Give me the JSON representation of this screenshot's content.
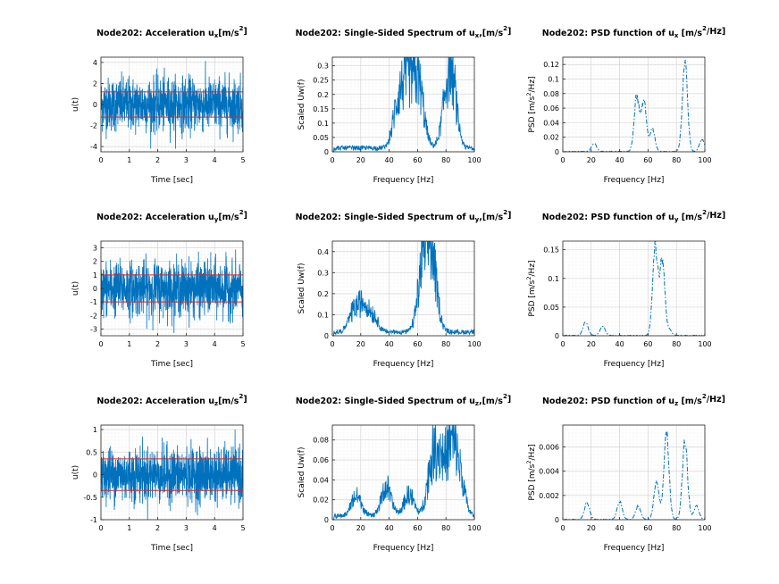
{
  "figure": {
    "panels": [
      {
        "id": "ax-ux",
        "title_pre": "Node202: Acceleration u",
        "title_sub": "x",
        "title_mid": "[m/s",
        "title_sup": "2",
        "title_post": "]",
        "xlabel": "Time [sec]",
        "ylabel": "u(t)",
        "xticks": [
          "0",
          "1",
          "2",
          "3",
          "4",
          "5"
        ],
        "yticks": [
          "-4",
          "-2",
          "0",
          "2",
          "4"
        ]
      },
      {
        "id": "ax-spec-x",
        "title_pre": "Node202: Single-Sided Spectrum of u",
        "title_sub": "x",
        "title_mid": ",[m/s",
        "title_sup": "2",
        "title_post": "]",
        "xlabel": "Frequency [Hz]",
        "ylabel": "Scaled Uw(f)",
        "xticks": [
          "0",
          "20",
          "40",
          "60",
          "80",
          "100"
        ],
        "yticks": [
          "0",
          "0.05",
          "0.1",
          "0.15",
          "0.2",
          "0.25",
          "0.3"
        ]
      },
      {
        "id": "ax-psd-x",
        "title_pre": "Node202: PSD function of u",
        "title_sub": "x",
        "title_mid": " [m/s",
        "title_sup": "2",
        "title_post": "/Hz]",
        "xlabel": "Frequency [Hz]",
        "ylabel_pre": "PSD [m/s",
        "ylabel_sup": "2",
        "ylabel_post": "/Hz]",
        "xticks": [
          "0",
          "20",
          "40",
          "60",
          "80",
          "100"
        ],
        "yticks": [
          "0",
          "0.02",
          "0.04",
          "0.06",
          "0.08",
          "0.1",
          "0.12"
        ]
      },
      {
        "id": "ax-uy",
        "title_pre": "Node202: Acceleration u",
        "title_sub": "y",
        "title_mid": "[m/s",
        "title_sup": "2",
        "title_post": "]",
        "xlabel": "Time [sec]",
        "ylabel": "u(t)",
        "xticks": [
          "0",
          "1",
          "2",
          "3",
          "4",
          "5"
        ],
        "yticks": [
          "-3",
          "-2",
          "-1",
          "0",
          "1",
          "2",
          "3"
        ]
      },
      {
        "id": "ax-spec-y",
        "title_pre": "Node202: Single-Sided Spectrum of u",
        "title_sub": "y",
        "title_mid": ",[m/s",
        "title_sup": "2",
        "title_post": "]",
        "xlabel": "Frequency [Hz]",
        "ylabel": "Scaled Uw(f)",
        "xticks": [
          "0",
          "20",
          "40",
          "60",
          "80",
          "100"
        ],
        "yticks": [
          "0",
          "0.1",
          "0.2",
          "0.3",
          "0.4"
        ]
      },
      {
        "id": "ax-psd-y",
        "title_pre": "Node202: PSD function of u",
        "title_sub": "y",
        "title_mid": " [m/s",
        "title_sup": "2",
        "title_post": "/Hz]",
        "xlabel": "Frequency [Hz]",
        "ylabel_pre": "PSD [m/s",
        "ylabel_sup": "2",
        "ylabel_post": "/Hz]",
        "xticks": [
          "0",
          "20",
          "40",
          "60",
          "80",
          "100"
        ],
        "yticks": [
          "0",
          "0.05",
          "0.1",
          "0.15"
        ]
      },
      {
        "id": "ax-uz",
        "title_pre": "Node202: Acceleration u",
        "title_sub": "z",
        "title_mid": "[m/s",
        "title_sup": "2",
        "title_post": "]",
        "xlabel": "Time [sec]",
        "ylabel": "u(t)",
        "xticks": [
          "0",
          "1",
          "2",
          "3",
          "4",
          "5"
        ],
        "yticks": [
          "-1",
          "-0.5",
          "0",
          "0.5",
          "1"
        ]
      },
      {
        "id": "ax-spec-z",
        "title_pre": "Node202: Single-Sided Spectrum of u",
        "title_sub": "z",
        "title_mid": ",[m/s",
        "title_sup": "2",
        "title_post": "]",
        "xlabel": "Frequency [Hz]",
        "ylabel": "Scaled Uw(f)",
        "xticks": [
          "0",
          "20",
          "40",
          "60",
          "80",
          "100"
        ],
        "yticks": [
          "0",
          "0.02",
          "0.04",
          "0.06",
          "0.08"
        ]
      },
      {
        "id": "ax-psd-z",
        "title_pre": "Node202: PSD function of u",
        "title_sub": "z",
        "title_mid": " [m/s",
        "title_sup": "2",
        "title_post": "/Hz]",
        "xlabel": "Frequency [Hz]",
        "ylabel_pre": "PSD [m/s",
        "ylabel_sup": "2",
        "ylabel_post": "/Hz]",
        "xticks": [
          "0",
          "20",
          "40",
          "60",
          "80",
          "100"
        ],
        "yticks": [
          "0",
          "0.002",
          "0.004",
          "0.006"
        ]
      }
    ]
  },
  "chart_data": [
    {
      "type": "line",
      "subtype": "time-history",
      "axis": "x",
      "x_range": [
        0,
        5
      ],
      "ylim": [
        -4.5,
        4.5
      ],
      "grid": "on-minor-dotted",
      "series": [
        {
          "kind": "signal",
          "color": "#0072bd",
          "sample_count": 1000,
          "amplitude_peak": 4.2
        },
        {
          "kind": "threshold",
          "color": "#d62728",
          "y": 1.2
        },
        {
          "kind": "threshold",
          "color": "#d62728",
          "y": -1.2
        }
      ]
    },
    {
      "type": "line",
      "subtype": "spectrum",
      "axis": "x",
      "x_range": [
        0,
        100
      ],
      "ylim": [
        0,
        0.33
      ],
      "grid": "on-minor-dotted",
      "color": "#0072bd",
      "peaks": [
        {
          "f": 52,
          "a": 0.26
        },
        {
          "f": 58,
          "a": 0.22
        },
        {
          "f": 62,
          "a": 0.19
        },
        {
          "f": 84,
          "a": 0.33
        },
        {
          "f": 46,
          "a": 0.2
        },
        {
          "f": 80,
          "a": 0.16
        }
      ]
    },
    {
      "type": "line",
      "subtype": "psd",
      "axis": "x",
      "line_style": "dash-dot",
      "x_range": [
        0,
        100
      ],
      "ylim": [
        0,
        0.13
      ],
      "grid": "on-minor-dotted",
      "color": "#0072bd",
      "peaks": [
        {
          "f": 22,
          "a": 0.012
        },
        {
          "f": 52,
          "a": 0.081
        },
        {
          "f": 57,
          "a": 0.075
        },
        {
          "f": 63,
          "a": 0.033
        },
        {
          "f": 86,
          "a": 0.133
        },
        {
          "f": 98,
          "a": 0.018
        }
      ]
    },
    {
      "type": "line",
      "subtype": "time-history",
      "axis": "y",
      "x_range": [
        0,
        5
      ],
      "ylim": [
        -3.5,
        3.5
      ],
      "grid": "on-minor-dotted",
      "series": [
        {
          "kind": "signal",
          "color": "#0072bd",
          "sample_count": 1000,
          "amplitude_peak": 3.3
        },
        {
          "kind": "threshold",
          "color": "#d62728",
          "y": 1.0
        },
        {
          "kind": "threshold",
          "color": "#d62728",
          "y": -1.0
        }
      ]
    },
    {
      "type": "line",
      "subtype": "spectrum",
      "axis": "y",
      "x_range": [
        0,
        100
      ],
      "ylim": [
        0,
        0.45
      ],
      "grid": "on-minor-dotted",
      "color": "#0072bd",
      "peaks": [
        {
          "f": 15,
          "a": 0.14
        },
        {
          "f": 22,
          "a": 0.18
        },
        {
          "f": 29,
          "a": 0.1
        },
        {
          "f": 63,
          "a": 0.32
        },
        {
          "f": 68,
          "a": 0.45
        },
        {
          "f": 72,
          "a": 0.2
        }
      ]
    },
    {
      "type": "line",
      "subtype": "psd",
      "axis": "y",
      "line_style": "dash-dot",
      "x_range": [
        0,
        100
      ],
      "ylim": [
        0,
        0.165
      ],
      "grid": "on-minor-dotted",
      "color": "#0072bd",
      "peaks": [
        {
          "f": 16,
          "a": 0.025
        },
        {
          "f": 28,
          "a": 0.018
        },
        {
          "f": 65,
          "a": 0.165
        },
        {
          "f": 70,
          "a": 0.14
        },
        {
          "f": 75,
          "a": 0.01
        }
      ]
    },
    {
      "type": "line",
      "subtype": "time-history",
      "axis": "z",
      "x_range": [
        0,
        5
      ],
      "ylim": [
        -1,
        1.1
      ],
      "grid": "on-minor-dotted",
      "series": [
        {
          "kind": "signal",
          "color": "#0072bd",
          "sample_count": 1000,
          "amplitude_peak": 1.0
        },
        {
          "kind": "threshold",
          "color": "#d62728",
          "y": 0.35
        },
        {
          "kind": "threshold",
          "color": "#d62728",
          "y": -0.35
        }
      ]
    },
    {
      "type": "line",
      "subtype": "spectrum",
      "axis": "z",
      "x_range": [
        0,
        100
      ],
      "ylim": [
        0,
        0.095
      ],
      "grid": "on-minor-dotted",
      "color": "#0072bd",
      "peaks": [
        {
          "f": 17,
          "a": 0.03
        },
        {
          "f": 38,
          "a": 0.042
        },
        {
          "f": 54,
          "a": 0.032
        },
        {
          "f": 70,
          "a": 0.07
        },
        {
          "f": 76,
          "a": 0.075
        },
        {
          "f": 84,
          "a": 0.095
        },
        {
          "f": 90,
          "a": 0.05
        }
      ]
    },
    {
      "type": "line",
      "subtype": "psd",
      "axis": "z",
      "line_style": "dash-dot",
      "x_range": [
        0,
        100
      ],
      "ylim": [
        0,
        0.0078
      ],
      "grid": "on-minor-dotted",
      "color": "#0072bd",
      "peaks": [
        {
          "f": 17,
          "a": 0.0015
        },
        {
          "f": 40,
          "a": 0.0016
        },
        {
          "f": 53,
          "a": 0.0012
        },
        {
          "f": 66,
          "a": 0.0035
        },
        {
          "f": 73,
          "a": 0.0076
        },
        {
          "f": 86,
          "a": 0.007
        },
        {
          "f": 94,
          "a": 0.0012
        }
      ]
    }
  ]
}
